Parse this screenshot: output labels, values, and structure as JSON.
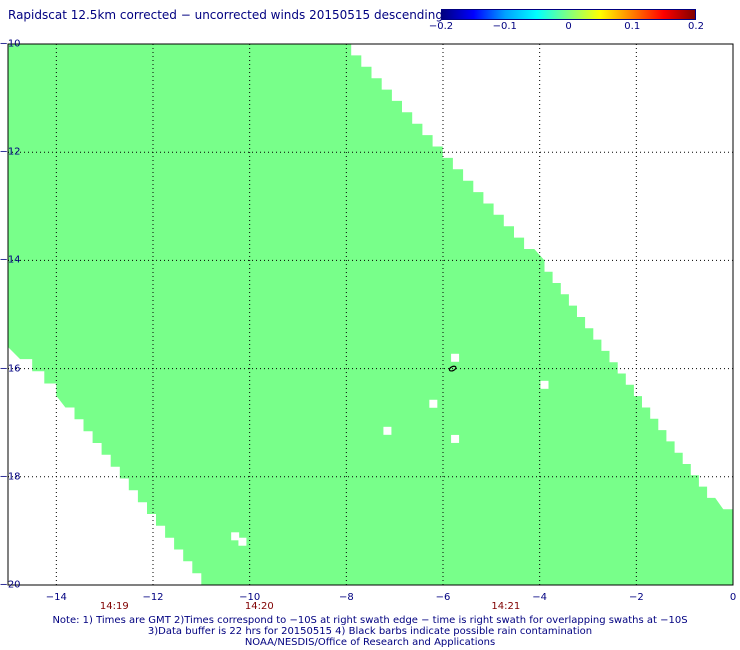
{
  "title": "Rapidscat 12.5km corrected − uncorrected winds 20150515 descending",
  "colorbar": {
    "ticks": [
      {
        "label": "−0.2",
        "value": -0.2
      },
      {
        "label": "−0.1",
        "value": -0.1
      },
      {
        "label": "0",
        "value": 0
      },
      {
        "label": "0.1",
        "value": 0.1
      },
      {
        "label": "0.2",
        "value": 0.2
      }
    ],
    "colors": [
      "#000080",
      "#0000ff",
      "#00a0ff",
      "#00ffff",
      "#80ff80",
      "#ffff00",
      "#ff8000",
      "#ff0000",
      "#800000"
    ]
  },
  "map": {
    "lon_range": [
      -15,
      0
    ],
    "lat_range": [
      -20,
      -10
    ],
    "lon_ticks": [
      {
        "label": "−14",
        "value": -14
      },
      {
        "label": "−12",
        "value": -12
      },
      {
        "label": "−10",
        "value": -10
      },
      {
        "label": "−8",
        "value": -8
      },
      {
        "label": "−6",
        "value": -6
      },
      {
        "label": "−4",
        "value": -4
      },
      {
        "label": "−2",
        "value": -2
      },
      {
        "label": "0",
        "value": 0
      }
    ],
    "lat_ticks": [
      {
        "label": "−10",
        "value": -10
      },
      {
        "label": "−12",
        "value": -12
      },
      {
        "label": "−14",
        "value": -14
      },
      {
        "label": "−16",
        "value": -16
      },
      {
        "label": "−18",
        "value": -18
      },
      {
        "label": "−20",
        "value": -20
      }
    ],
    "time_labels": [
      {
        "label": "14:19",
        "lon": -12.8
      },
      {
        "label": "14:20",
        "lon": -9.8
      },
      {
        "label": "14:21",
        "lon": -4.7
      }
    ],
    "swath_color": "#78ff8a",
    "gridlines": true,
    "swath_polygon": [
      [
        -15,
        -10
      ],
      [
        -7.9,
        -10
      ],
      [
        -3.9,
        -14.0
      ],
      [
        -0.2,
        -18.6
      ],
      [
        0,
        -18.6
      ],
      [
        0,
        -20
      ],
      [
        -11.0,
        -20
      ],
      [
        -14.0,
        -16.5
      ],
      [
        -15,
        -15.6
      ]
    ],
    "missing_cells": [
      {
        "lon": -5.75,
        "lat": -15.8
      },
      {
        "lon": -3.9,
        "lat": -16.3
      },
      {
        "lon": -6.2,
        "lat": -16.65
      },
      {
        "lon": -7.15,
        "lat": -17.15
      },
      {
        "lon": -5.75,
        "lat": -17.3
      },
      {
        "lon": -10.3,
        "lat": -19.1
      },
      {
        "lon": -10.15,
        "lat": -19.2
      }
    ],
    "rain_barbs": [
      {
        "lon": -5.8,
        "lat": -16.0
      }
    ]
  },
  "notes": [
    "Note: 1) Times are GMT 2)Times correspond to −10S at right swath edge − time is right swath for overlapping swaths at −10S",
    "3)Data buffer is 22 hrs for 20150515 4) Black barbs indicate possible rain contamination",
    "NOAA/NESDIS/Office of Research and Applications"
  ]
}
